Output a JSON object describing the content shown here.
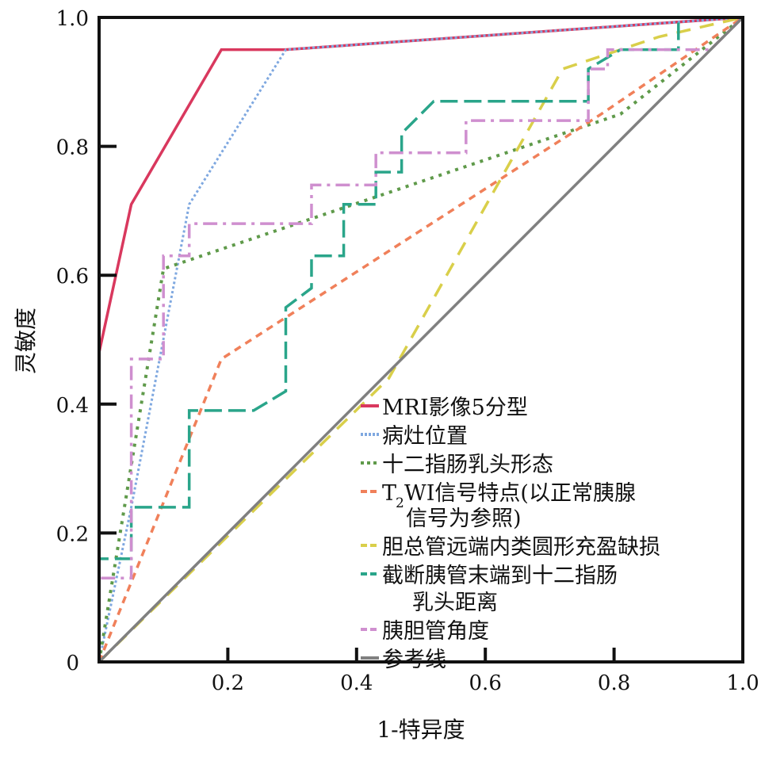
{
  "chart_data": {
    "type": "line",
    "title": "",
    "xlabel": "1-特异度",
    "ylabel": "灵敏度",
    "xlim": [
      0,
      1
    ],
    "ylim": [
      0,
      1
    ],
    "xticks": [
      "0.2",
      "0.4",
      "0.6",
      "0.8",
      "1.0"
    ],
    "xtick_values": [
      0.2,
      0.4,
      0.6,
      0.8,
      1.0
    ],
    "yticks": [
      "0",
      "0.2",
      "0.4",
      "0.6",
      "0.8",
      "1.0"
    ],
    "ytick_values": [
      0,
      0.2,
      0.4,
      0.6,
      0.8,
      1.0
    ],
    "grid": false,
    "legend_position": "bottom-right",
    "series": [
      {
        "name": "MRI影像5分型",
        "color": "#d9385e",
        "dash": "solid",
        "points": [
          [
            0,
            0
          ],
          [
            0,
            0.48
          ],
          [
            0.05,
            0.71
          ],
          [
            0.19,
            0.95
          ],
          [
            0.29,
            0.95
          ],
          [
            1,
            1
          ]
        ]
      },
      {
        "name": "病灶位置",
        "color": "#7fa8e0",
        "dash": "dot",
        "points": [
          [
            0,
            0
          ],
          [
            0.05,
            0.24
          ],
          [
            0.14,
            0.71
          ],
          [
            0.29,
            0.95
          ],
          [
            1,
            1
          ]
        ]
      },
      {
        "name": "十二指肠乳头形态",
        "color": "#5f9a4a",
        "dash": "dotbig",
        "points": [
          [
            0,
            0
          ],
          [
            0.1,
            0.61
          ],
          [
            0.81,
            0.85
          ],
          [
            1,
            1
          ]
        ]
      },
      {
        "name": "T₂WI信号特点(以正常胰腺信号为参照)",
        "legend_lines": [
          "T",
          "2",
          "WI信号特点(以正常胰腺",
          "信号为参照)"
        ],
        "color": "#f0805a",
        "dash": "dash-short",
        "points": [
          [
            0,
            0
          ],
          [
            0.19,
            0.47
          ],
          [
            0.78,
            0.85
          ],
          [
            1,
            1
          ]
        ]
      },
      {
        "name": "胆总管远端内类圆形充盈缺损",
        "color": "#d9cf4a",
        "dash": "dash",
        "points": [
          [
            0,
            0
          ],
          [
            0.45,
            0.44
          ],
          [
            0.72,
            0.92
          ],
          [
            0.87,
            0.97
          ],
          [
            1,
            1
          ]
        ]
      },
      {
        "name": "截断胰管末端到十二指肠乳头距离",
        "legend_lines": [
          "截断胰管末端到十二指肠",
          "乳头距离"
        ],
        "color": "#2aa58a",
        "dash": "longdash",
        "points": [
          [
            0,
            0
          ],
          [
            0,
            0.16
          ],
          [
            0.05,
            0.16
          ],
          [
            0.05,
            0.24
          ],
          [
            0.14,
            0.24
          ],
          [
            0.14,
            0.39
          ],
          [
            0.24,
            0.39
          ],
          [
            0.29,
            0.42
          ],
          [
            0.29,
            0.55
          ],
          [
            0.33,
            0.58
          ],
          [
            0.33,
            0.63
          ],
          [
            0.38,
            0.63
          ],
          [
            0.38,
            0.71
          ],
          [
            0.43,
            0.71
          ],
          [
            0.43,
            0.76
          ],
          [
            0.47,
            0.76
          ],
          [
            0.47,
            0.82
          ],
          [
            0.52,
            0.87
          ],
          [
            0.76,
            0.87
          ],
          [
            0.76,
            0.92
          ],
          [
            0.81,
            0.95
          ],
          [
            0.9,
            0.95
          ],
          [
            0.9,
            1.0
          ],
          [
            1,
            1
          ]
        ]
      },
      {
        "name": "胰胆管角度",
        "color": "#cf8fcf",
        "dash": "dashdot",
        "points": [
          [
            0,
            0
          ],
          [
            0,
            0.13
          ],
          [
            0.05,
            0.13
          ],
          [
            0.05,
            0.47
          ],
          [
            0.1,
            0.47
          ],
          [
            0.1,
            0.63
          ],
          [
            0.14,
            0.63
          ],
          [
            0.14,
            0.68
          ],
          [
            0.33,
            0.68
          ],
          [
            0.33,
            0.74
          ],
          [
            0.43,
            0.74
          ],
          [
            0.43,
            0.79
          ],
          [
            0.57,
            0.79
          ],
          [
            0.57,
            0.84
          ],
          [
            0.76,
            0.84
          ],
          [
            0.76,
            0.92
          ],
          [
            0.79,
            0.92
          ],
          [
            0.79,
            0.95
          ],
          [
            0.95,
            0.95
          ],
          [
            1,
            1
          ]
        ]
      },
      {
        "name": "参考线",
        "color": "#808080",
        "dash": "solid",
        "points": [
          [
            0,
            0
          ],
          [
            1,
            1
          ]
        ]
      }
    ]
  }
}
